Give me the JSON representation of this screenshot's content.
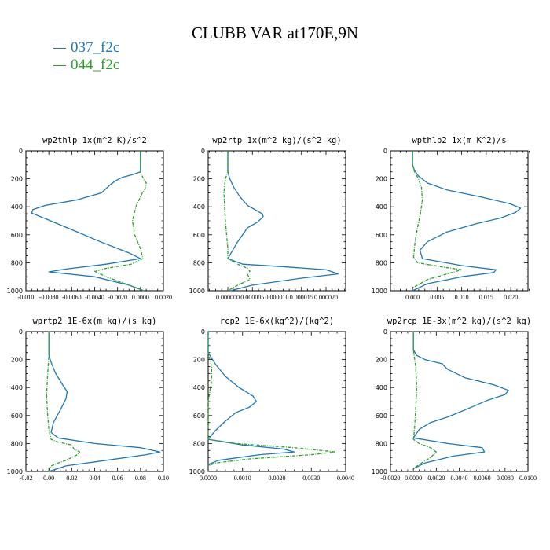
{
  "title": "CLUBB VAR at170E,9N",
  "legend": [
    {
      "name": "037_f2c",
      "color": "#1f77b4"
    },
    {
      "name": "044_f2c",
      "color": "#2ca02c"
    }
  ],
  "chart_data": [
    {
      "type": "line",
      "title": "wp2thlp   1x(m^2 K)/s^2",
      "xlim": [
        -0.01,
        0.002
      ],
      "ylim": [
        1000,
        0
      ],
      "xticks": [
        "-0.010",
        "-0.0080",
        "-0.0060",
        "-0.0040",
        "-0.0020",
        "0.0000",
        "0.0020"
      ],
      "xtick_values": [
        -0.01,
        -0.008,
        -0.006,
        -0.004,
        -0.002,
        0.0,
        0.002
      ],
      "yticks": [
        "0",
        "200",
        "400",
        "600",
        "800",
        "1000"
      ],
      "series": [
        {
          "name": "037_f2c",
          "x": [
            0.0,
            0.0,
            -0.0007,
            -0.0016,
            -0.0022,
            -0.0026,
            -0.0034,
            -0.0055,
            -0.0083,
            -0.0094,
            -0.0095,
            -0.008,
            -0.0058,
            -0.0035,
            -0.001,
            0.0,
            -0.003,
            -0.0065,
            -0.008,
            -0.004,
            -0.001,
            0.0003
          ],
          "y": [
            0,
            150,
            170,
            190,
            215,
            240,
            300,
            350,
            390,
            420,
            445,
            495,
            570,
            650,
            730,
            770,
            810,
            845,
            865,
            900,
            960,
            1000
          ]
        },
        {
          "name": "044_f2c",
          "x": [
            0.0,
            0.0,
            0.0002,
            0.0005,
            0.0004,
            0.0001,
            -0.0004,
            -0.0007,
            -0.0005,
            0.0,
            0.0002,
            -0.0008,
            -0.003,
            -0.004,
            -0.003,
            -0.001,
            0.0003
          ],
          "y": [
            0,
            150,
            190,
            230,
            270,
            310,
            400,
            500,
            600,
            700,
            770,
            810,
            840,
            860,
            900,
            960,
            1000
          ]
        }
      ]
    },
    {
      "type": "line",
      "title": "wp2rtp   1x(m^2 kg)/(s^2 kg)",
      "xlim": [
        -4e-06,
        2.4e-05
      ],
      "ylim": [
        1000,
        0
      ],
      "xticks": [
        "0.000000",
        "0.000005",
        "0.000010",
        "0.000015",
        "0.000020"
      ],
      "xtick_values": [
        0.0,
        5e-06,
        1e-05,
        1.5e-05,
        2e-05
      ],
      "yticks": [
        "0",
        "200",
        "400",
        "600",
        "800",
        "1000"
      ],
      "series": [
        {
          "name": "037_f2c",
          "x": [
            0.0,
            0.0,
            4e-07,
            1.2e-06,
            2.5e-06,
            4e-06,
            7e-06,
            7.2e-06,
            6e-06,
            4e-06,
            2e-06,
            0.0,
            3e-06,
            1.2e-05,
            2e-05,
            2.25e-05,
            1.5e-05,
            5e-06,
            5e-07
          ],
          "y": [
            0,
            150,
            200,
            260,
            330,
            390,
            450,
            470,
            510,
            550,
            650,
            770,
            810,
            830,
            850,
            880,
            910,
            960,
            1000
          ]
        },
        {
          "name": "044_f2c",
          "x": [
            0.0,
            0.0,
            -5e-07,
            -8e-07,
            -5e-07,
            0.0,
            0.0,
            2e-06,
            4e-06,
            4.5e-06,
            4e-06,
            4.5e-06,
            2e-06,
            0.0
          ],
          "y": [
            0,
            150,
            200,
            300,
            500,
            700,
            770,
            810,
            840,
            860,
            880,
            920,
            960,
            1000
          ]
        }
      ]
    },
    {
      "type": "line",
      "title": "wpthlp2   1x(m K^2)/s",
      "xlim": [
        -0.0045,
        0.0235
      ],
      "ylim": [
        1000,
        0
      ],
      "xticks": [
        "0.000",
        "0.005",
        "0.010",
        "0.015",
        "0.020"
      ],
      "xtick_values": [
        0.0,
        0.005,
        0.01,
        0.015,
        0.02
      ],
      "yticks": [
        "0",
        "200",
        "400",
        "600",
        "800",
        "1000"
      ],
      "series": [
        {
          "name": "037_f2c",
          "x": [
            0.0,
            0.0,
            0.0004,
            0.0012,
            0.003,
            0.007,
            0.014,
            0.02,
            0.022,
            0.021,
            0.018,
            0.013,
            0.007,
            0.003,
            0.0015,
            0.002,
            0.01,
            0.017,
            0.0165,
            0.01,
            0.003,
            0.0
          ],
          "y": [
            0,
            100,
            140,
            180,
            230,
            280,
            330,
            380,
            410,
            440,
            480,
            520,
            580,
            650,
            710,
            770,
            820,
            850,
            870,
            900,
            950,
            1000
          ]
        },
        {
          "name": "044_f2c",
          "x": [
            0.0,
            0.0,
            0.0004,
            0.0012,
            0.0018,
            0.002,
            0.0016,
            0.001,
            0.0005,
            0.0002,
            0.001,
            0.006,
            0.01,
            0.008,
            0.003,
            0.0
          ],
          "y": [
            0,
            100,
            150,
            200,
            260,
            350,
            450,
            550,
            650,
            760,
            800,
            830,
            850,
            870,
            920,
            980
          ]
        }
      ]
    },
    {
      "type": "line",
      "title": "wprtp2   1E-6x(m kg)/(s kg)",
      "xlim": [
        -0.02,
        0.1
      ],
      "ylim": [
        1000,
        0
      ],
      "xticks": [
        "-0.02",
        "0.00",
        "0.02",
        "0.04",
        "0.06",
        "0.08",
        "0.10"
      ],
      "xtick_values": [
        -0.02,
        0.0,
        0.02,
        0.04,
        0.06,
        0.08,
        0.1
      ],
      "yticks": [
        "0",
        "200",
        "400",
        "600",
        "800",
        "1000"
      ],
      "series": [
        {
          "name": "037_f2c",
          "x": [
            0.0,
            0.0,
            0.002,
            0.006,
            0.012,
            0.016,
            0.015,
            0.01,
            0.004,
            0.002,
            0.008,
            0.04,
            0.08,
            0.097,
            0.085,
            0.05,
            0.015,
            0.0
          ],
          "y": [
            0,
            170,
            220,
            300,
            380,
            430,
            480,
            560,
            650,
            720,
            760,
            800,
            830,
            860,
            880,
            920,
            960,
            1000
          ]
        },
        {
          "name": "044_f2c",
          "x": [
            0.0,
            0.0,
            -0.001,
            -0.002,
            -0.001,
            0.0,
            0.002,
            0.008,
            0.02,
            0.022,
            0.027,
            0.025,
            0.015,
            0.008,
            0.002,
            0.0
          ],
          "y": [
            0,
            170,
            300,
            450,
            600,
            700,
            770,
            790,
            810,
            840,
            860,
            880,
            920,
            940,
            960,
            1000
          ]
        }
      ]
    },
    {
      "type": "line",
      "title": "rcp2   1E-6x(kg^2)/(kg^2)",
      "xlim": [
        0.0,
        0.004
      ],
      "ylim": [
        1000,
        0
      ],
      "xticks": [
        "0.0000",
        "0.0010",
        "0.0020",
        "0.0030",
        "0.0040"
      ],
      "xtick_values": [
        0.0,
        0.001,
        0.002,
        0.003,
        0.004
      ],
      "yticks": [
        "0",
        "200",
        "400",
        "600",
        "800",
        "1000"
      ],
      "series": [
        {
          "name": "037_f2c",
          "x": [
            0.0,
            0.0,
            0.0002,
            0.0005,
            0.0009,
            0.0013,
            0.0014,
            0.0012,
            0.0008,
            0.0005,
            0.0002,
            0.0,
            0.001,
            0.0022,
            0.0025,
            0.0015,
            0.0003,
            0.0
          ],
          "y": [
            0,
            150,
            230,
            320,
            400,
            460,
            500,
            540,
            580,
            640,
            710,
            770,
            810,
            840,
            860,
            880,
            920,
            950
          ]
        },
        {
          "name": "044_f2c",
          "x": [
            0.0,
            0.0,
            0.0001,
            0.0001,
            0.0,
            0.0,
            0.0,
            0.0008,
            0.0025,
            0.0037,
            0.003,
            0.0012,
            0.0002,
            0.0
          ],
          "y": [
            0,
            150,
            250,
            350,
            500,
            650,
            770,
            800,
            830,
            860,
            880,
            910,
            940,
            960
          ]
        }
      ]
    },
    {
      "type": "line",
      "title": "wp2rcp   1E-3x(m^2 kg)/(s^2 kg)",
      "xlim": [
        -0.002,
        0.01
      ],
      "ylim": [
        1000,
        0
      ],
      "xticks": [
        "-0.0020",
        "0.0000",
        "0.0020",
        "0.0040",
        "0.0060",
        "0.0080",
        "0.0100"
      ],
      "xtick_values": [
        -0.002,
        0.0,
        0.002,
        0.004,
        0.006,
        0.008,
        0.01
      ],
      "yticks": [
        "0",
        "200",
        "400",
        "600",
        "800",
        "1000"
      ],
      "series": [
        {
          "name": "037_f2c",
          "x": [
            0.0,
            0.0,
            0.0003,
            0.001,
            0.0025,
            0.003,
            0.0045,
            0.007,
            0.0083,
            0.008,
            0.0065,
            0.0045,
            0.003,
            0.0015,
            0.0005,
            0.0,
            0.003,
            0.006,
            0.0062,
            0.0035,
            0.001,
            0.0
          ],
          "y": [
            0,
            130,
            170,
            200,
            230,
            270,
            330,
            380,
            420,
            450,
            490,
            560,
            610,
            650,
            700,
            760,
            800,
            830,
            860,
            890,
            940,
            980
          ]
        },
        {
          "name": "044_f2c",
          "x": [
            0.0,
            0.0,
            0.0002,
            0.0003,
            0.0002,
            0.0001,
            0.0,
            0.0005,
            0.0015,
            0.002,
            0.0015,
            0.0005,
            0.0
          ],
          "y": [
            0,
            130,
            250,
            400,
            550,
            700,
            770,
            800,
            830,
            860,
            900,
            950,
            980
          ]
        }
      ]
    }
  ]
}
